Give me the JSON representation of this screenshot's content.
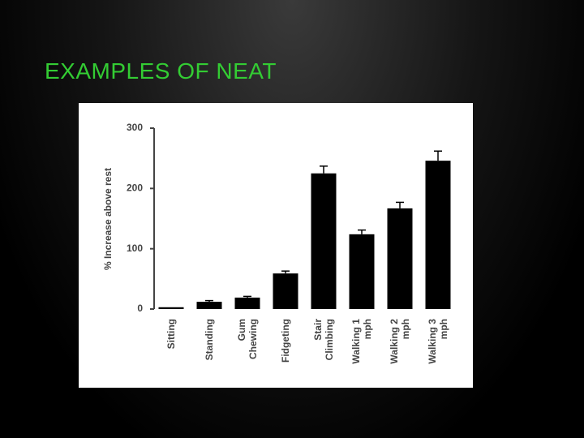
{
  "slide": {
    "title": "EXAMPLES OF NEAT"
  },
  "chart_data": {
    "type": "bar",
    "y_label": "% Increase above rest",
    "categories": [
      "Sitting",
      "Standing",
      "Gum\nChewing",
      "Fidgeting",
      "Stair\nClimbing",
      "Walking 1\nmph",
      "Walking 2\nmph",
      "Walking 3\nmph"
    ],
    "values": [
      3,
      12,
      19,
      59,
      225,
      124,
      167,
      246
    ],
    "errors": [
      0,
      2,
      2,
      4,
      12,
      7,
      10,
      16
    ],
    "color": "#000000",
    "ylim": [
      0,
      300
    ],
    "yticks": [
      0,
      100,
      200,
      300
    ],
    "grid": false
  }
}
